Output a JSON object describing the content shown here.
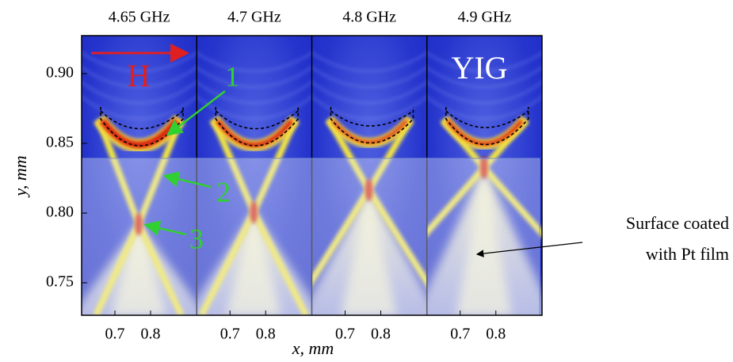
{
  "panels": [
    {
      "title": "4.65 GHz"
    },
    {
      "title": "4.7 GHz"
    },
    {
      "title": "4.8 GHz"
    },
    {
      "title": "4.9 GHz"
    }
  ],
  "y_axis": {
    "label": "y, mm",
    "ticks": [
      "0.90",
      "0.85",
      "0.80",
      "0.75"
    ]
  },
  "x_axis": {
    "label": "x, mm",
    "ticks": [
      "0.7",
      "0.8"
    ]
  },
  "annotations": {
    "field": "H",
    "material": "YIG",
    "markers": [
      "1",
      "2",
      "3"
    ],
    "coating": [
      "Surface coated",
      "with Pt film"
    ]
  }
}
